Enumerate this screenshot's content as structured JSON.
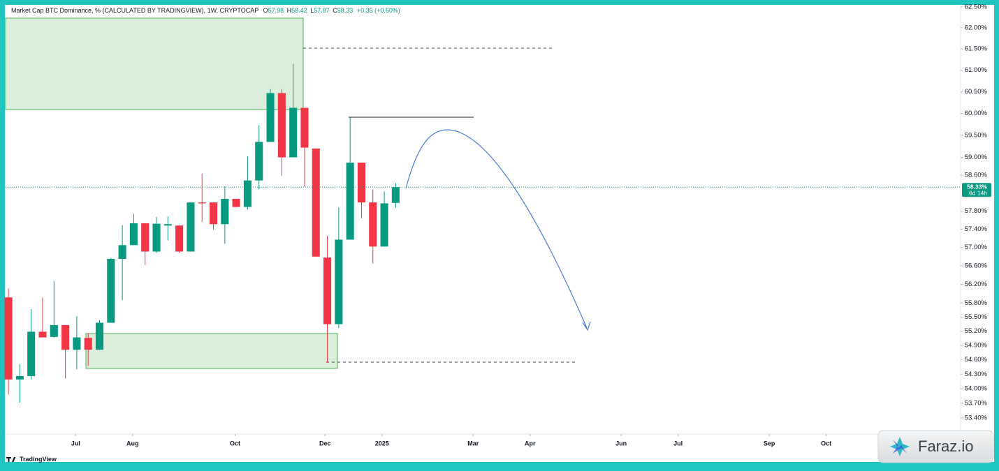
{
  "header": {
    "symbol": "Market Cap BTC Dominance, % (CALCULATED BY TRADINGVIEW), 1W, CRYPTOCAP",
    "ohlc": [
      {
        "label": "O",
        "value": "57.98"
      },
      {
        "label": "H",
        "value": "58.42"
      },
      {
        "label": "L",
        "value": "57.87"
      },
      {
        "label": "C",
        "value": "58.33"
      }
    ],
    "change": "+0.35 (+0.60%)"
  },
  "branding": "TradingView",
  "watermark": "Faraz.io",
  "chart_data": {
    "type": "candlestick",
    "yscale": "log",
    "ylim": [
      53.07,
      62.53
    ],
    "xlim": [
      -0.25,
      83.6
    ],
    "grid": false,
    "up_color": "#089981",
    "down_color": "#f23645",
    "open": [
      55.92,
      54.19,
      54.26,
      55.19,
      55.08,
      55.33,
      54.81,
      55.06,
      54.81,
      55.38,
      56.75,
      57.05,
      57.53,
      56.91,
      57.48,
      57.48,
      56.91,
      57.99,
      57.99,
      57.51,
      58.07,
      57.89,
      58.48,
      59.35,
      60.47,
      59.0,
      60.13,
      59.2,
      56.78,
      55.35,
      57.17,
      58.88,
      57.99,
      57.02,
      57.98
    ],
    "high": [
      56.11,
      54.51,
      55.67,
      55.92,
      56.27,
      55.33,
      55.52,
      55.16,
      55.43,
      56.77,
      57.49,
      57.74,
      57.53,
      57.67,
      57.68,
      57.48,
      57.99,
      58.63,
      57.99,
      58.35,
      58.07,
      59.02,
      59.73,
      60.56,
      60.56,
      61.15,
      60.13,
      59.2,
      57.25,
      57.88,
      59.92,
      58.88,
      58.28,
      58.24,
      58.42
    ],
    "low": [
      53.88,
      53.71,
      54.19,
      55.07,
      55.06,
      54.21,
      54.4,
      54.47,
      54.81,
      55.38,
      55.86,
      57.05,
      56.62,
      56.88,
      57.15,
      56.88,
      56.91,
      57.56,
      57.39,
      57.08,
      57.89,
      57.83,
      58.28,
      59.35,
      58.58,
      59.0,
      58.34,
      56.8,
      54.54,
      55.27,
      57.17,
      57.64,
      56.65,
      57.02,
      57.87
    ],
    "close": [
      54.19,
      54.26,
      55.19,
      55.07,
      55.33,
      54.81,
      55.07,
      54.81,
      55.38,
      56.75,
      57.05,
      57.53,
      56.91,
      57.52,
      57.51,
      56.91,
      57.99,
      57.97,
      57.51,
      58.07,
      57.89,
      58.48,
      59.35,
      60.47,
      59.0,
      60.13,
      59.22,
      56.8,
      55.35,
      57.17,
      58.88,
      57.99,
      57.02,
      57.97,
      58.33
    ],
    "yticks": [
      {
        "value": 62.5,
        "label": "62.50%"
      },
      {
        "value": 62.0,
        "label": "62.00%"
      },
      {
        "value": 61.5,
        "label": "61.50%"
      },
      {
        "value": 61.0,
        "label": "61.00%"
      },
      {
        "value": 60.5,
        "label": "60.50%"
      },
      {
        "value": 60.0,
        "label": "60.00%"
      },
      {
        "value": 59.5,
        "label": "59.50%"
      },
      {
        "value": 59.0,
        "label": "59.00%"
      },
      {
        "value": 58.6,
        "label": "58.60%"
      },
      {
        "value": 57.8,
        "label": "57.80%"
      },
      {
        "value": 57.4,
        "label": "57.40%"
      },
      {
        "value": 57.0,
        "label": "57.00%"
      },
      {
        "value": 56.6,
        "label": "56.60%"
      },
      {
        "value": 56.2,
        "label": "56.20%"
      },
      {
        "value": 55.8,
        "label": "55.80%"
      },
      {
        "value": 55.5,
        "label": "55.50%"
      },
      {
        "value": 55.2,
        "label": "55.20%"
      },
      {
        "value": 54.9,
        "label": "54.90%"
      },
      {
        "value": 54.6,
        "label": "54.60%"
      },
      {
        "value": 54.3,
        "label": "54.30%"
      },
      {
        "value": 54.0,
        "label": "54.00%"
      },
      {
        "value": 53.7,
        "label": "53.70%"
      },
      {
        "value": 53.4,
        "label": "53.40%"
      }
    ],
    "xticks": [
      {
        "value": 5.9,
        "label": "Jul"
      },
      {
        "value": 10.9,
        "label": "Aug"
      },
      {
        "value": 19.9,
        "label": "Oct"
      },
      {
        "value": 27.8,
        "label": "Dec"
      },
      {
        "value": 32.8,
        "label": "2025"
      },
      {
        "value": 40.8,
        "label": "Mar"
      },
      {
        "value": 45.8,
        "label": "Apr"
      },
      {
        "value": 53.8,
        "label": "Jun"
      },
      {
        "value": 58.8,
        "label": "Jul"
      },
      {
        "value": 66.8,
        "label": "Sep"
      },
      {
        "value": 71.8,
        "label": "Oct"
      }
    ],
    "last_price": {
      "value": 58.33,
      "label": "58.33%",
      "countdown": "6d 14h"
    }
  }
}
